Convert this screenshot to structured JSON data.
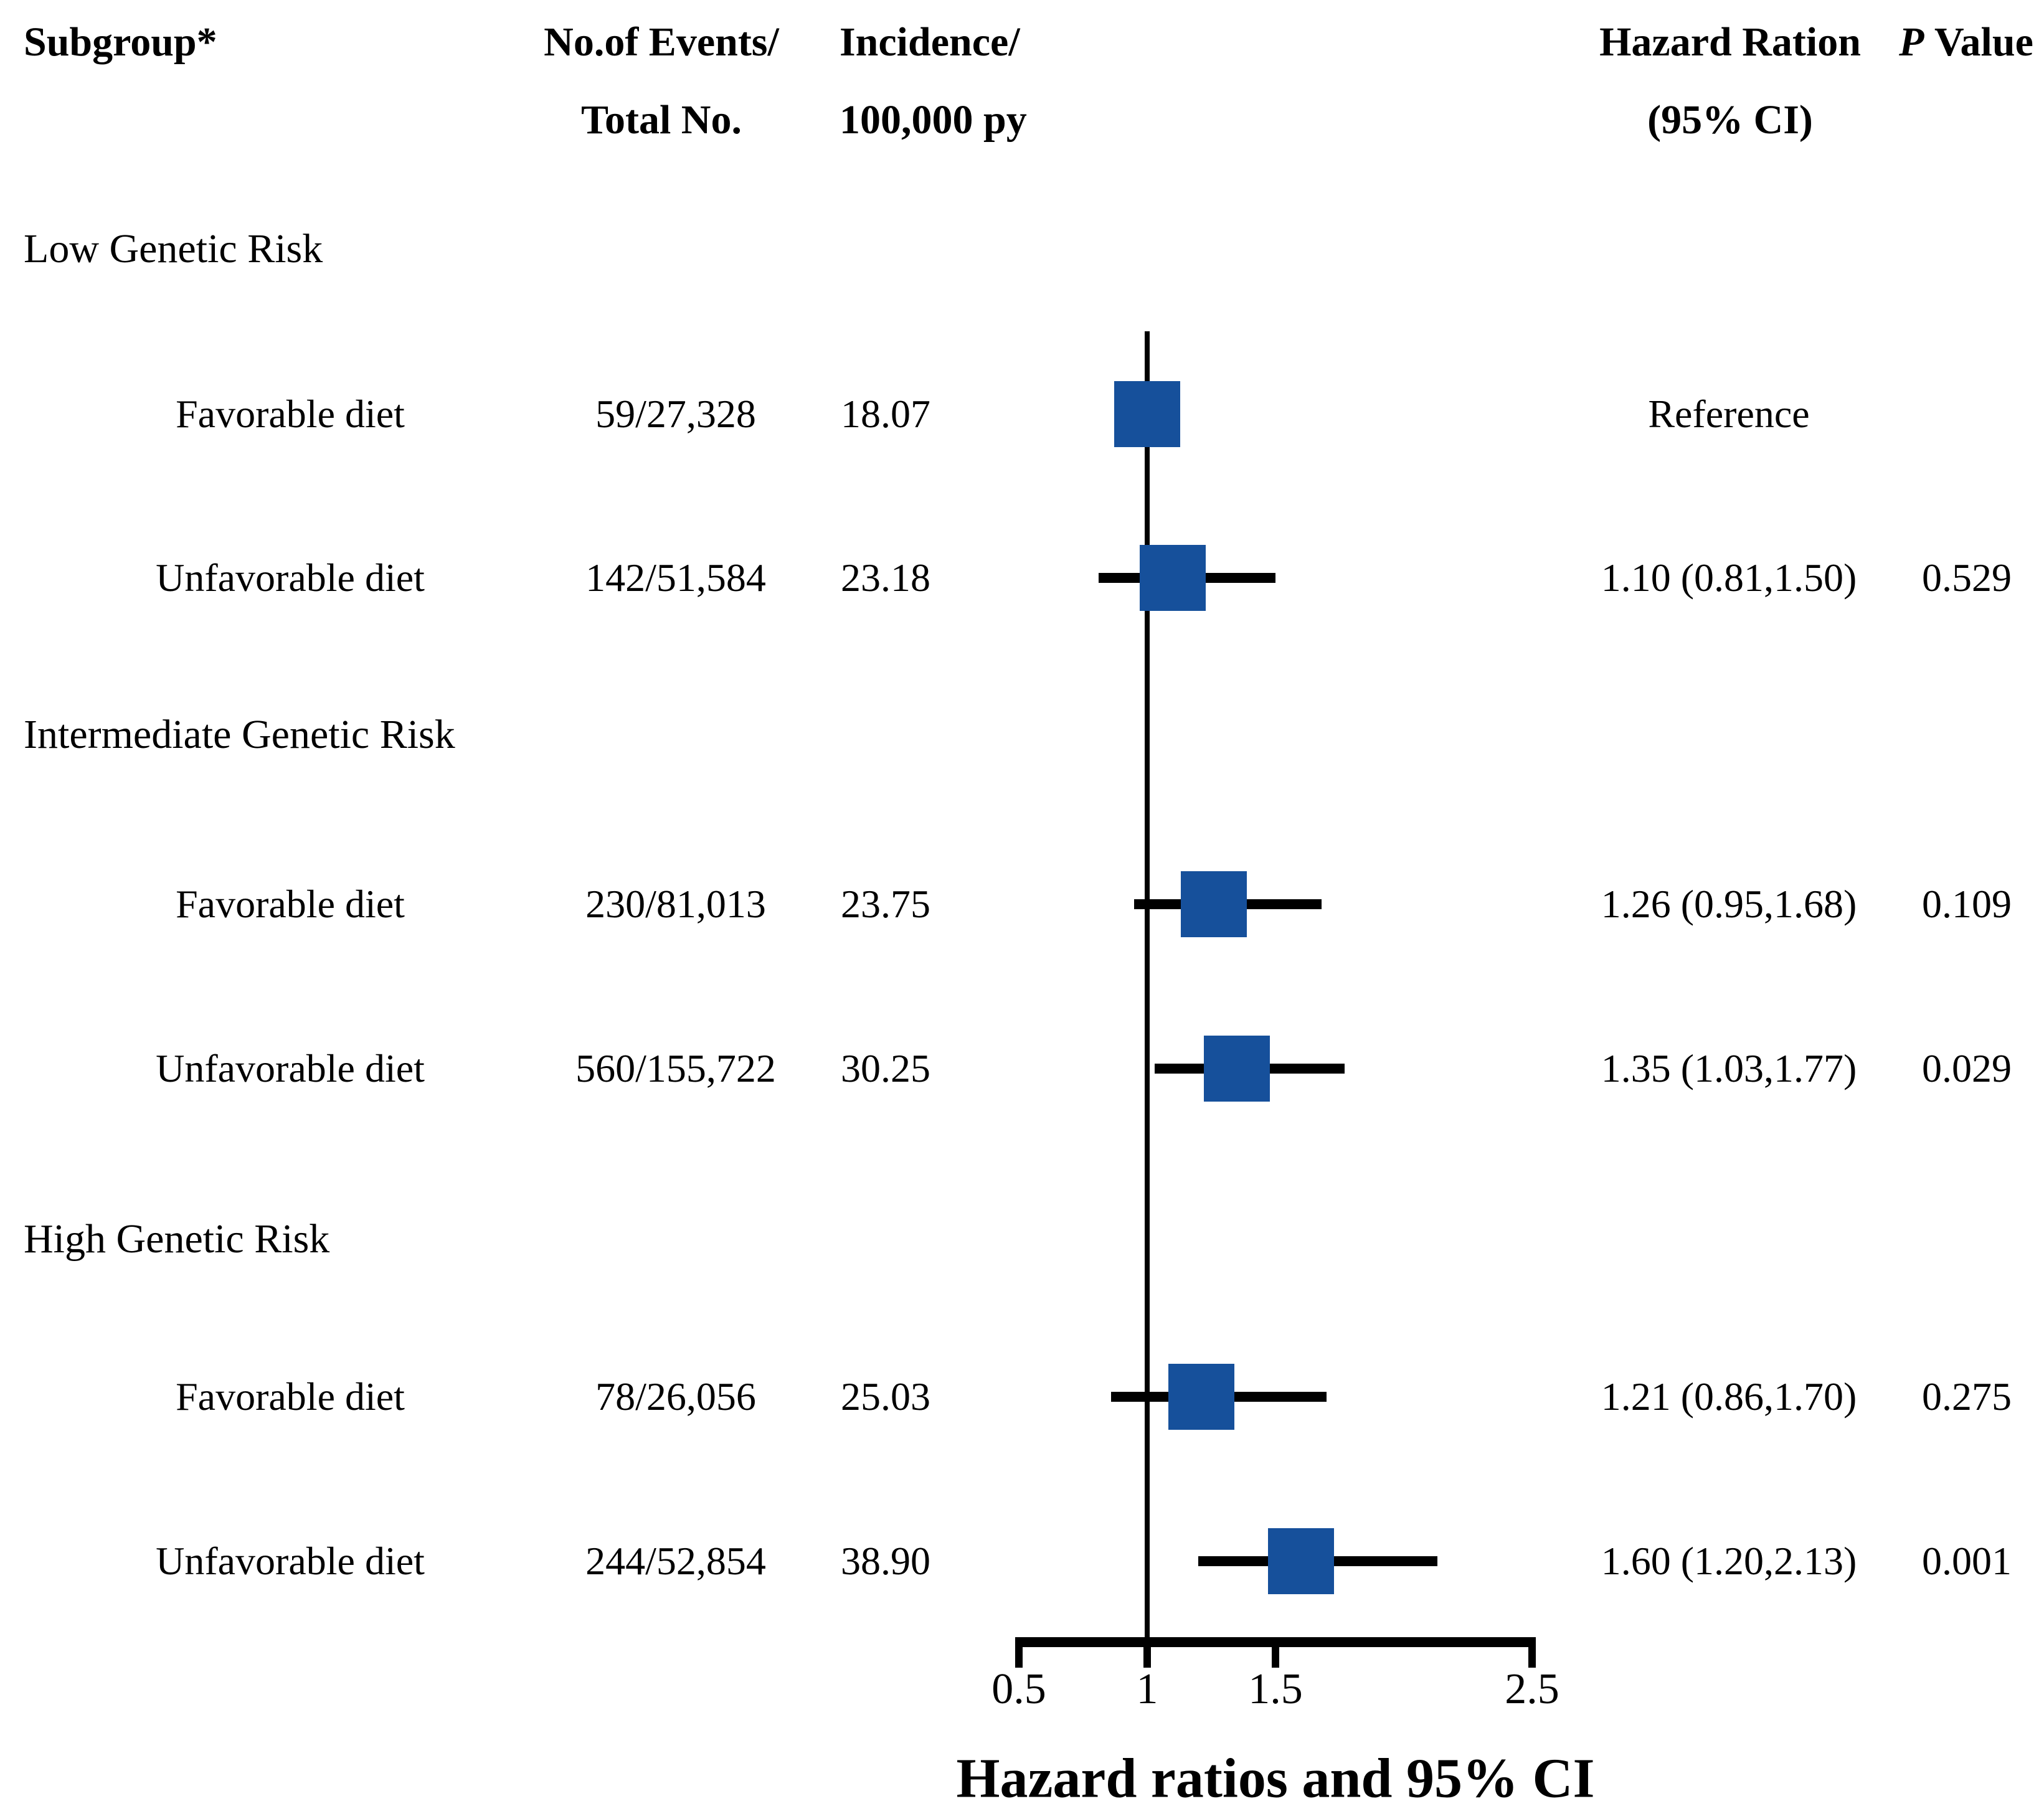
{
  "figure": {
    "background": "#ffffff",
    "text_color": "#000000",
    "marker_color": "#16509B",
    "line_color": "#000000"
  },
  "header": {
    "subgroup": "Subgroup*",
    "events_line1": "No.of Events/",
    "events_line2": "Total No.",
    "incidence_line1": "Incidence/",
    "incidence_line2": "100,000 py",
    "hr_line1": "Hazard Ration",
    "hr_line2": "(95% CI)",
    "p_italic": "P",
    "p_rest": "Value"
  },
  "chart_data": {
    "type": "forest",
    "title": "",
    "xlabel": "Hazard ratios and 95% CI",
    "x_range": [
      0.5,
      2.5
    ],
    "x_tick_values": [
      0.5,
      1,
      1.5,
      2.5
    ],
    "x_tick_labels": [
      "0.5",
      "1",
      "1.5",
      "2.5"
    ],
    "reference_line_x": 1,
    "grid": false,
    "marker": "square",
    "groups": [
      {
        "label": "Low Genetic Risk",
        "items": [
          {
            "label": "Favorable diet",
            "events_total": "59/27,328",
            "incidence": "18.07",
            "hr": 1.0,
            "ci_low": null,
            "ci_high": null,
            "hr_ci_text": "Reference",
            "p_value": ""
          },
          {
            "label": "Unfavorable diet",
            "events_total": "142/51,584",
            "incidence": "23.18",
            "hr": 1.1,
            "ci_low": 0.81,
            "ci_high": 1.5,
            "hr_ci_text": "1.10 (0.81,1.50)",
            "p_value": "0.529"
          }
        ]
      },
      {
        "label": "Intermediate Genetic Risk",
        "items": [
          {
            "label": "Favorable diet",
            "events_total": "230/81,013",
            "incidence": "23.75",
            "hr": 1.26,
            "ci_low": 0.95,
            "ci_high": 1.68,
            "hr_ci_text": "1.26 (0.95,1.68)",
            "p_value": "0.109"
          },
          {
            "label": "Unfavorable diet",
            "events_total": "560/155,722",
            "incidence": "30.25",
            "hr": 1.35,
            "ci_low": 1.03,
            "ci_high": 1.77,
            "hr_ci_text": "1.35 (1.03,1.77)",
            "p_value": "0.029"
          }
        ]
      },
      {
        "label": "High Genetic Risk",
        "items": [
          {
            "label": "Favorable diet",
            "events_total": "78/26,056",
            "incidence": "25.03",
            "hr": 1.21,
            "ci_low": 0.86,
            "ci_high": 1.7,
            "hr_ci_text": "1.21 (0.86,1.70)",
            "p_value": "0.275"
          },
          {
            "label": "Unfavorable diet",
            "events_total": "244/52,854",
            "incidence": "38.90",
            "hr": 1.6,
            "ci_low": 1.2,
            "ci_high": 2.13,
            "hr_ci_text": "1.60 (1.20,2.13)",
            "p_value": "0.001"
          }
        ]
      }
    ]
  }
}
